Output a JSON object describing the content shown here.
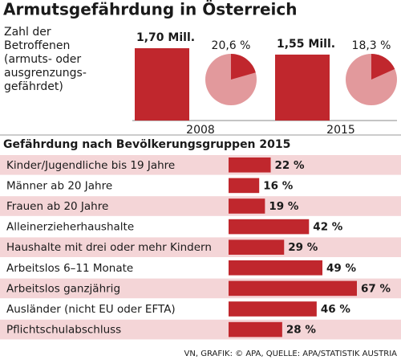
{
  "title": "Armutsgefährdung in Österreich",
  "source": "VN, GRAFIK: © APA, QUELLE: APA/STATISTIK AUSTRIA",
  "chart_data": [
    {
      "type": "bar",
      "label_lines": [
        "Zahl der",
        "Betroffenen",
        "(armuts- oder",
        "ausgrenzungs-",
        "gefährdet)"
      ],
      "categories": [
        "2008",
        "2015"
      ],
      "values": [
        1.7,
        1.55
      ],
      "value_labels": [
        "1,70 Mill.",
        "1,55 Mill."
      ],
      "color": "#c0272d"
    },
    {
      "type": "pie",
      "values": [
        20.6,
        18.3
      ],
      "value_labels": [
        "20,6 %",
        "18,3 %"
      ],
      "color": "#c0272d",
      "rest_color": "#e2999c"
    },
    {
      "type": "hbar",
      "title": "Gefährdung nach Bevölkerungsgruppen 2015",
      "categories": [
        "Kinder/Jugendliche bis 19 Jahre",
        "Männer ab 20 Jahre",
        "Frauen ab 20 Jahre",
        "Alleinerzieherhaushalte",
        "Haushalte mit drei oder mehr Kindern",
        "Arbeitslos 6–11 Monate",
        "Arbeitslos ganzjährig",
        "Ausländer (nicht EU oder EFTA)",
        "Pflichtschulabschluss"
      ],
      "values": [
        22,
        16,
        19,
        42,
        29,
        49,
        67,
        46,
        28
      ],
      "value_labels": [
        "22 %",
        "16 %",
        "19 %",
        "42 %",
        "29 %",
        "49 %",
        "67 %",
        "46 %",
        "28 %"
      ],
      "color": "#c0272d",
      "band_color": "#f4d5d7"
    }
  ]
}
